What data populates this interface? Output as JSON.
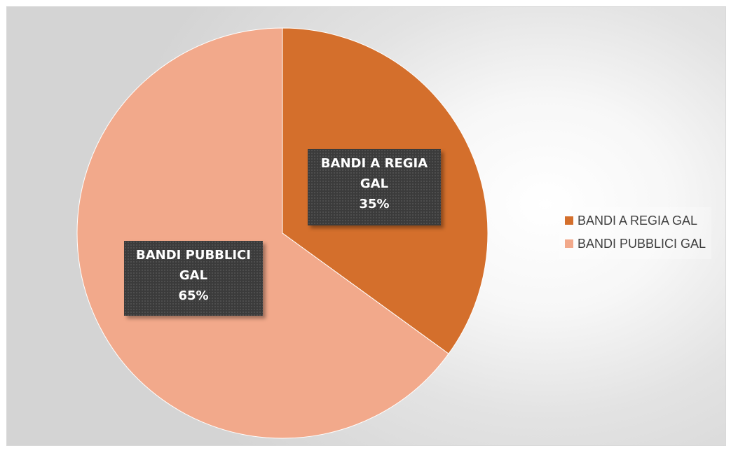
{
  "chart_data": {
    "type": "pie",
    "title": "",
    "categories": [
      "BANDI A REGIA GAL",
      "BANDI PUBBLICI GAL"
    ],
    "values": [
      35,
      65
    ],
    "unit": "%",
    "colors": [
      "#d46f2c",
      "#f2a98b"
    ],
    "start_angle_deg": 0,
    "direction": "clockwise",
    "legend_position": "right",
    "data_labels": [
      {
        "name_lines": [
          "BANDI A REGIA",
          "GAL"
        ],
        "value": "35%"
      },
      {
        "name_lines": [
          "BANDI PUBBLICI",
          "GAL"
        ],
        "value": "65%"
      }
    ],
    "legend": [
      "BANDI A REGIA GAL",
      "BANDI PUBBLICI GAL"
    ]
  }
}
